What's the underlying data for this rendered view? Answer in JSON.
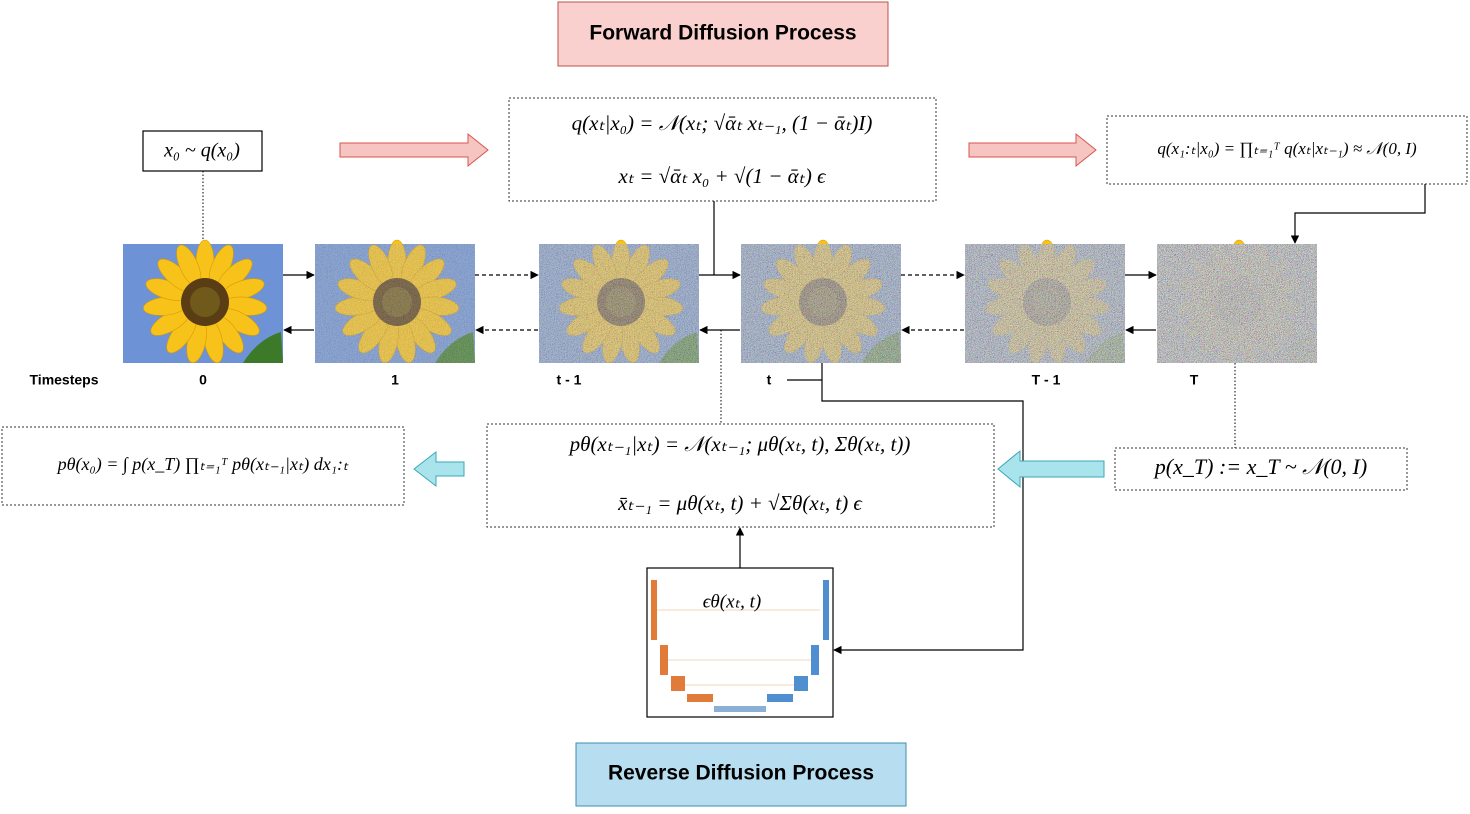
{
  "header": {
    "forward_title": "Forward Diffusion Process",
    "reverse_title": "Reverse Diffusion Process"
  },
  "timesteps": {
    "label": "Timesteps",
    "steps": [
      "0",
      "1",
      "t - 1",
      "t",
      "T - 1",
      "T"
    ]
  },
  "formulas": {
    "data_distribution": "x₀ ~ q(x₀)",
    "forward_step": "q(xₜ|x₀) = 𝒩(xₜ; √ᾱₜ xₜ₋₁, (1 − ᾱₜ)I)",
    "forward_sample": "xₜ = √ᾱₜ x₀ + √(1 − ᾱₜ) ϵ",
    "forward_joint": "q(x₁:ₜ|x₀) = ∏ₜ₌₁ᵀ q(xₜ|xₜ₋₁) ≈ 𝒩(0, I)",
    "reverse_step": "pθ(xₜ₋₁|xₜ) = 𝒩(xₜ₋₁; μθ(xₜ, t), Σθ(xₜ, t))",
    "reverse_sample": "x̄ₜ₋₁ = μθ(xₜ, t) + √Σθ(xₜ, t) ϵ",
    "prior": "p(x_T) := x_T ~ 𝒩(0, I)",
    "reverse_joint": "pθ(x₀) = ∫ p(x_T) ∏ₜ₌₁ᵀ pθ(xₜ₋₁|xₜ) dx₁:ₜ",
    "network": "ϵθ(xₜ, t)"
  }
}
